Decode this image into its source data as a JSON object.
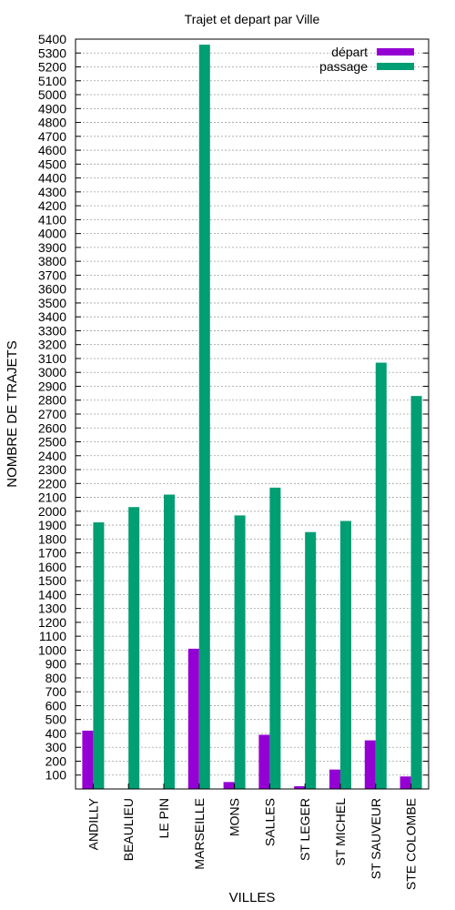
{
  "chart_data": {
    "type": "bar",
    "title": "Trajet et depart par Ville",
    "xlabel": "VILLES",
    "ylabel": "NOMBRE DE TRAJETS",
    "ylim": [
      0,
      5400
    ],
    "yticks": [
      100,
      200,
      300,
      400,
      500,
      600,
      700,
      800,
      900,
      1000,
      1100,
      1200,
      1300,
      1400,
      1500,
      1600,
      1700,
      1800,
      1900,
      2000,
      2100,
      2200,
      2300,
      2400,
      2500,
      2600,
      2700,
      2800,
      2900,
      3000,
      3100,
      3200,
      3300,
      3400,
      3500,
      3600,
      3700,
      3800,
      3900,
      4000,
      4100,
      4200,
      4300,
      4400,
      4500,
      4600,
      4700,
      4800,
      4900,
      5000,
      5100,
      5200,
      5300,
      5400
    ],
    "grid": true,
    "legend_position": "top-right",
    "categories": [
      "ANDILLY",
      "BEAULIEU",
      "LE PIN",
      "MARSEILLE",
      "MONS",
      "SALLES",
      "ST LEGER",
      "ST MICHEL",
      "ST SAUVEUR",
      "STE COLOMBE"
    ],
    "series": [
      {
        "name": "départ",
        "color": "#9400d3",
        "values": [
          420,
          0,
          0,
          1010,
          50,
          390,
          20,
          140,
          350,
          90
        ]
      },
      {
        "name": "passage",
        "color": "#009e73",
        "values": [
          1920,
          2030,
          2120,
          5360,
          1970,
          2170,
          1850,
          1930,
          3070,
          2830
        ]
      }
    ]
  }
}
